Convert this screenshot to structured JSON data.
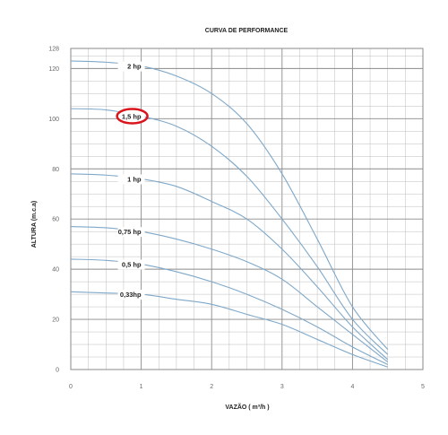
{
  "chart_data": {
    "type": "line",
    "title": "CURVA DE PERFORMANCE",
    "xlabel": "VAZÃO ( m³/h )",
    "ylabel": "ALTURA (m.c.a)",
    "xlim": [
      0,
      5
    ],
    "ylim": [
      0,
      128
    ],
    "x_ticks": [
      "0",
      "1",
      "2",
      "3",
      "4",
      "5"
    ],
    "y_ticks": [
      "0",
      "20",
      "40",
      "60",
      "80",
      "100",
      "120",
      "128"
    ],
    "grid": true,
    "series": [
      {
        "name": "2 hp",
        "x": [
          0,
          0.5,
          1,
          1.5,
          2,
          2.5,
          3,
          3.5,
          4,
          4.5
        ],
        "y": [
          123,
          122.5,
          121,
          117,
          110,
          98,
          78,
          52,
          25,
          8
        ]
      },
      {
        "name": "1,5 hp",
        "x": [
          0,
          0.5,
          1,
          1.5,
          2,
          2.5,
          3,
          3.5,
          4,
          4.5
        ],
        "y": [
          104,
          103.5,
          101,
          97,
          89,
          77,
          60,
          41,
          20,
          6
        ]
      },
      {
        "name": "1 hp",
        "x": [
          0,
          0.5,
          1,
          1.5,
          2,
          2.5,
          3,
          3.5,
          4,
          4.5
        ],
        "y": [
          78,
          77.5,
          76,
          73,
          67,
          60,
          48,
          33,
          17,
          4
        ]
      },
      {
        "name": "0,75 hp",
        "x": [
          0,
          0.5,
          1,
          1.5,
          2,
          2.5,
          3,
          3.5,
          4,
          4.5
        ],
        "y": [
          57,
          56.5,
          55,
          52,
          48,
          43,
          36,
          25,
          14,
          3
        ]
      },
      {
        "name": "0,5 hp",
        "x": [
          0,
          0.5,
          1,
          1.5,
          2,
          2.5,
          3,
          3.5,
          4,
          4.5
        ],
        "y": [
          44,
          43.5,
          42,
          39,
          35,
          30,
          24,
          17,
          9,
          2
        ]
      },
      {
        "name": "0,33hp",
        "x": [
          0,
          0.5,
          1,
          1.5,
          2,
          2.5,
          3,
          3.5,
          4,
          4.5
        ],
        "y": [
          31,
          30.5,
          30,
          28,
          26,
          22,
          18,
          12,
          6,
          1
        ]
      }
    ],
    "highlighted_series": "1,5 hp",
    "colors": {
      "curve": "#7fa8c9",
      "grid": "#bdbdbd",
      "grid_major": "#8a8a8a",
      "highlight": "#d9141c"
    }
  }
}
